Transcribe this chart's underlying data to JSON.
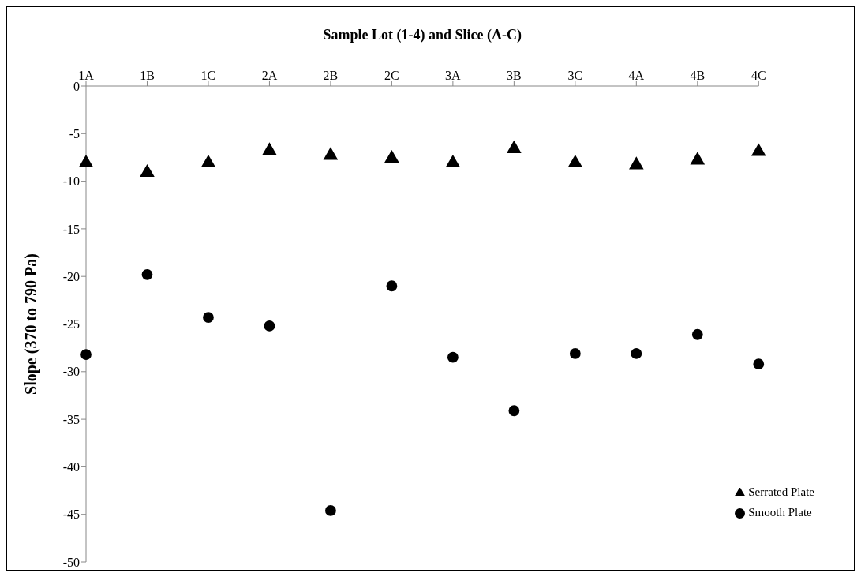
{
  "chart_data": {
    "type": "scatter",
    "xlabel": "Sample Lot (1-4) and Slice (A-C)",
    "ylabel": "Slope (370 to 790 Pa)",
    "categories": [
      "1A",
      "1B",
      "1C",
      "2A",
      "2B",
      "2C",
      "3A",
      "3B",
      "3C",
      "4A",
      "4B",
      "4C"
    ],
    "series": [
      {
        "name": "Smooth Plate",
        "color": "#000000",
        "marker": "circle",
        "values": [
          -28.2,
          -19.8,
          -24.3,
          -25.2,
          -44.6,
          -21.0,
          -28.5,
          -34.1,
          -28.1,
          -28.1,
          -26.1,
          -29.2
        ]
      },
      {
        "name": "Serrated Plate",
        "color": "#000000",
        "marker": "triangle",
        "values": [
          -8.1,
          -9.1,
          -8.1,
          -6.8,
          -7.3,
          -7.6,
          -8.1,
          -6.6,
          -8.1,
          -8.3,
          -7.8,
          -6.9
        ]
      }
    ],
    "ylim": [
      -50,
      0
    ],
    "yticks": [
      0,
      -5,
      -10,
      -15,
      -20,
      -25,
      -30,
      -35,
      -40,
      -45,
      -50
    ],
    "legend": "bottom right"
  }
}
